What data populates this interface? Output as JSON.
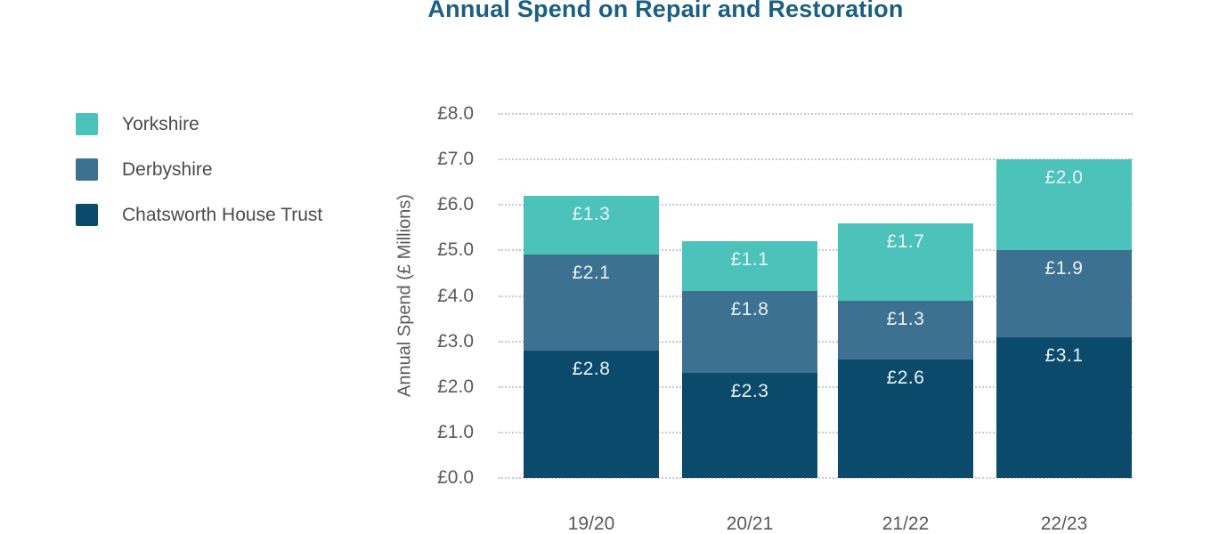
{
  "page": {
    "background": "#FFFFFF"
  },
  "chart_data": {
    "type": "bar",
    "variant": "stacked",
    "title": "Annual Spend on Repair and Restoration",
    "title_color": "#1B5F82",
    "categories": [
      "19/20",
      "20/21",
      "21/22",
      "22/23"
    ],
    "series": [
      {
        "name": "Yorkshire",
        "color": "#4CC3BA",
        "values": [
          1.3,
          1.1,
          1.7,
          2.0
        ]
      },
      {
        "name": "Derbyshire",
        "color": "#3D7191",
        "values": [
          2.1,
          1.8,
          1.3,
          1.9
        ]
      },
      {
        "name": "Chatsworth House Trust",
        "color": "#0C4A6C",
        "values": [
          2.8,
          2.3,
          2.6,
          3.1
        ]
      }
    ],
    "stack_order_bottom_to_top": [
      "Chatsworth House Trust",
      "Derbyshire",
      "Yorkshire"
    ],
    "segment_label_prefix": "£",
    "segment_label_color": "#E8F3F5",
    "xlabel": "",
    "ylabel": "Annual Spend (£ Millions)",
    "ylim": [
      0,
      8
    ],
    "ytick_labels": [
      "£0.0",
      "£1.0",
      "£2.0",
      "£3.0",
      "£4.0",
      "£5.0",
      "£6.0",
      "£7.0",
      "£8.0"
    ],
    "grid": "horizontal-dotted",
    "gridline_color": "#C9C9C9",
    "legend_position": "left",
    "axis_text_color": "#58595B",
    "legend_text_color": "#4B4B4D"
  }
}
